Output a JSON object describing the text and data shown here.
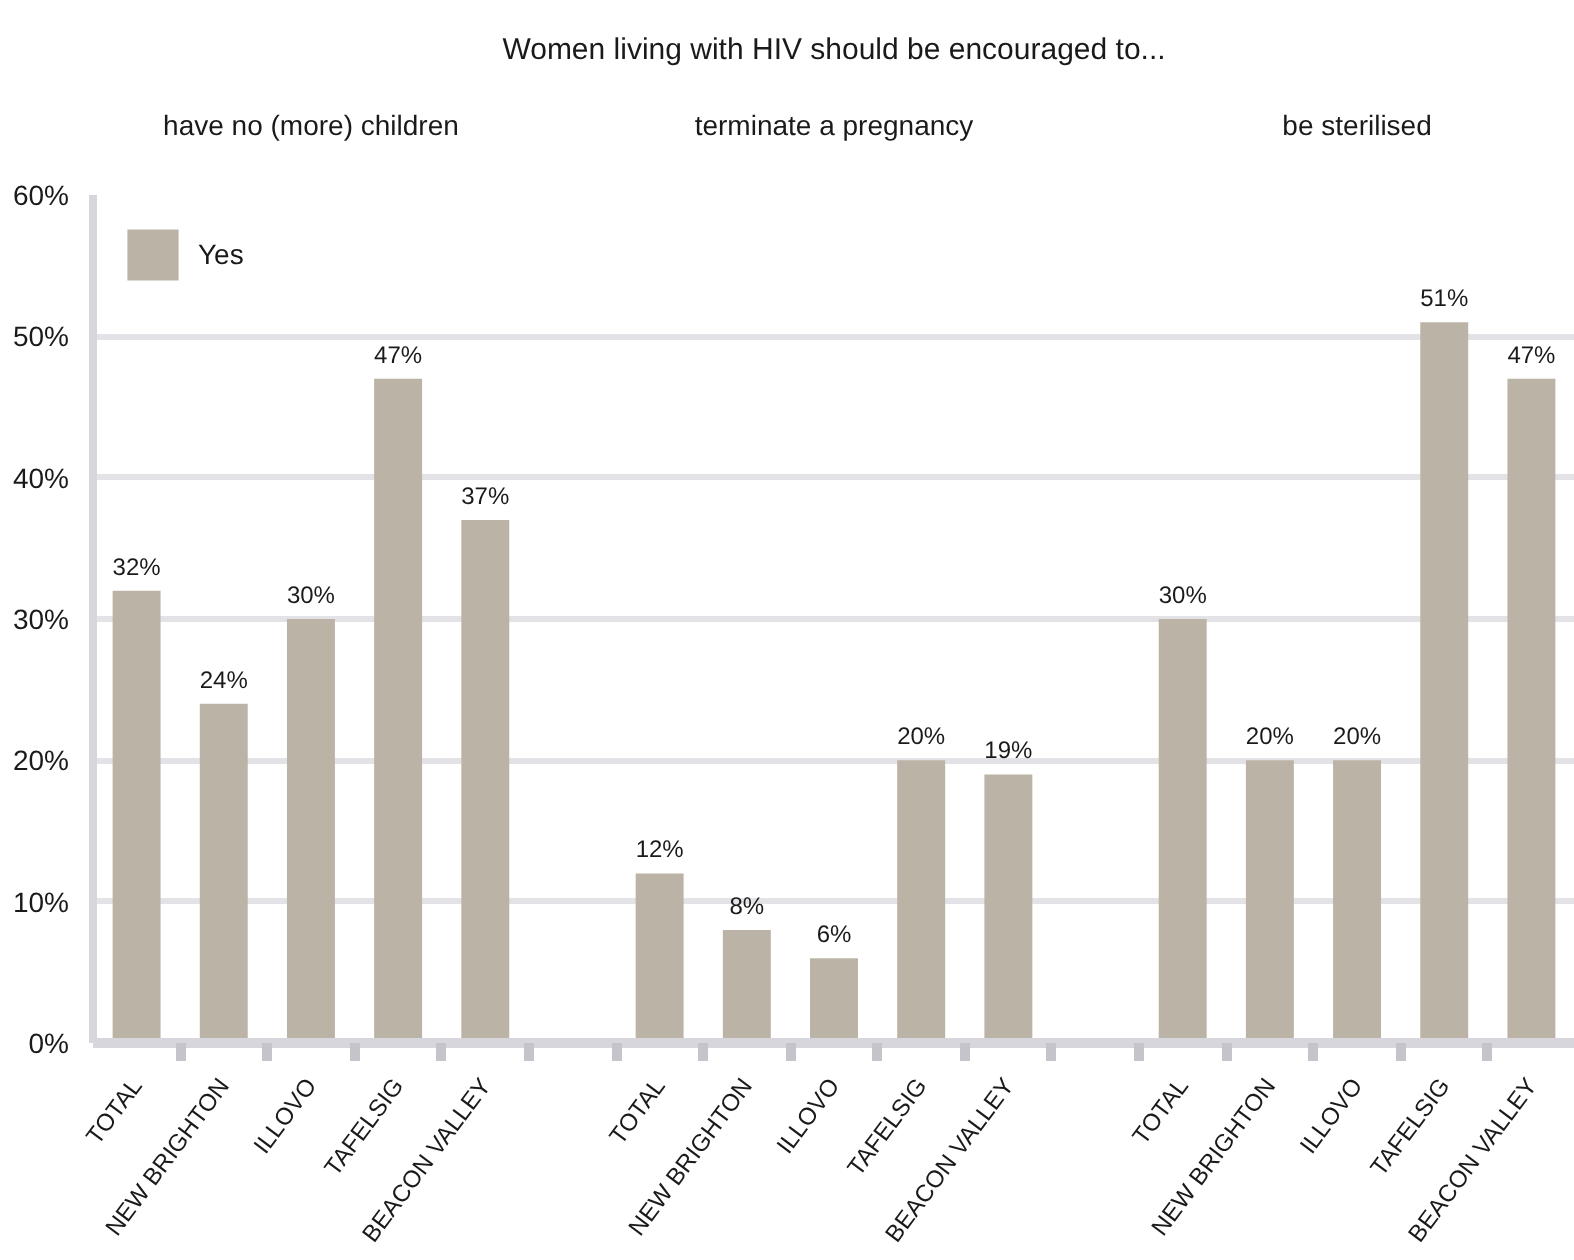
{
  "chart_data": {
    "type": "bar",
    "title": "Women living with HIV should be encouraged to...",
    "annotations": [
      "have no (more) children",
      "terminate a pregnancy",
      "be sterilised"
    ],
    "categories": [
      "TOTAL",
      "NEW BRIGHTON",
      "ILLOVO",
      "TAFELSIG",
      "BEACON VALLEY",
      null,
      "TOTAL",
      "NEW BRIGHTON",
      "ILLOVO",
      "TAFELSIG",
      "BEACON VALLEY",
      null,
      "TOTAL",
      "NEW BRIGHTON",
      "ILLOVO",
      "TAFELSIG",
      "BEACON VALLEY"
    ],
    "series": [
      {
        "name": "Yes",
        "color": "#bbb3a6",
        "values": [
          32,
          24,
          30,
          47,
          37,
          null,
          12,
          8,
          6,
          20,
          19,
          null,
          30,
          20,
          20,
          51,
          47
        ],
        "value_labels": [
          "32%",
          "24%",
          "30%",
          "47%",
          "37%",
          null,
          "12%",
          "8%",
          "6%",
          "20%",
          "19%",
          null,
          "30%",
          "20%",
          "20%",
          "51%",
          "47%"
        ]
      }
    ],
    "ylim": [
      0,
      60
    ],
    "yticks": [
      {
        "value": 0,
        "label": "0%"
      },
      {
        "value": 10,
        "label": "10%"
      },
      {
        "value": 20,
        "label": "20%"
      },
      {
        "value": 30,
        "label": "30%"
      },
      {
        "value": 40,
        "label": "40%"
      },
      {
        "value": 50,
        "label": "50%"
      },
      {
        "value": 60,
        "label": "60%"
      }
    ],
    "grid": "y",
    "legend": "top left"
  }
}
